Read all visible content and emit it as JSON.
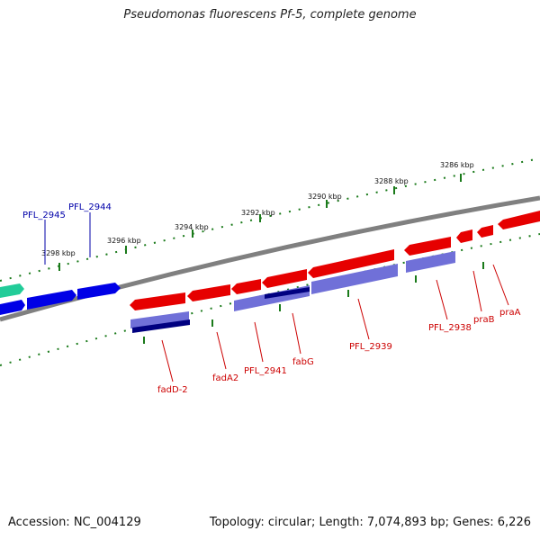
{
  "title": "Pseudomonas fluorescens Pf-5, complete genome",
  "footer": {
    "accession": "Accession: NC_004129",
    "summary": "Topology: circular; Length: 7,074,893 bp; Genes: 6,226"
  },
  "scale_labels": [
    "3286 kbp",
    "3288 kbp",
    "3290 kbp",
    "3292 kbp",
    "3294 kbp",
    "3296 kbp",
    "3298 kbp"
  ],
  "colors": {
    "backbone": "#808080",
    "tick": "#1a7a1a",
    "forward_gene": "#0000e6",
    "reverse_gene": "#e60000",
    "rna_feature": "#7070d8",
    "dark_feature": "#000080",
    "teal_feature": "#22cc99",
    "forward_label": "#0000aa",
    "reverse_label": "#cc0000"
  },
  "gene_labels": {
    "pfl2945": "PFL_2945",
    "pfl2944": "PFL_2944",
    "fadD2": "fadD-2",
    "fadA2": "fadA2",
    "pfl2941": "PFL_2941",
    "fabG": "fabG",
    "pfl2939": "PFL_2939",
    "pfl2938": "PFL_2938",
    "praB": "praB",
    "praA": "praA"
  }
}
